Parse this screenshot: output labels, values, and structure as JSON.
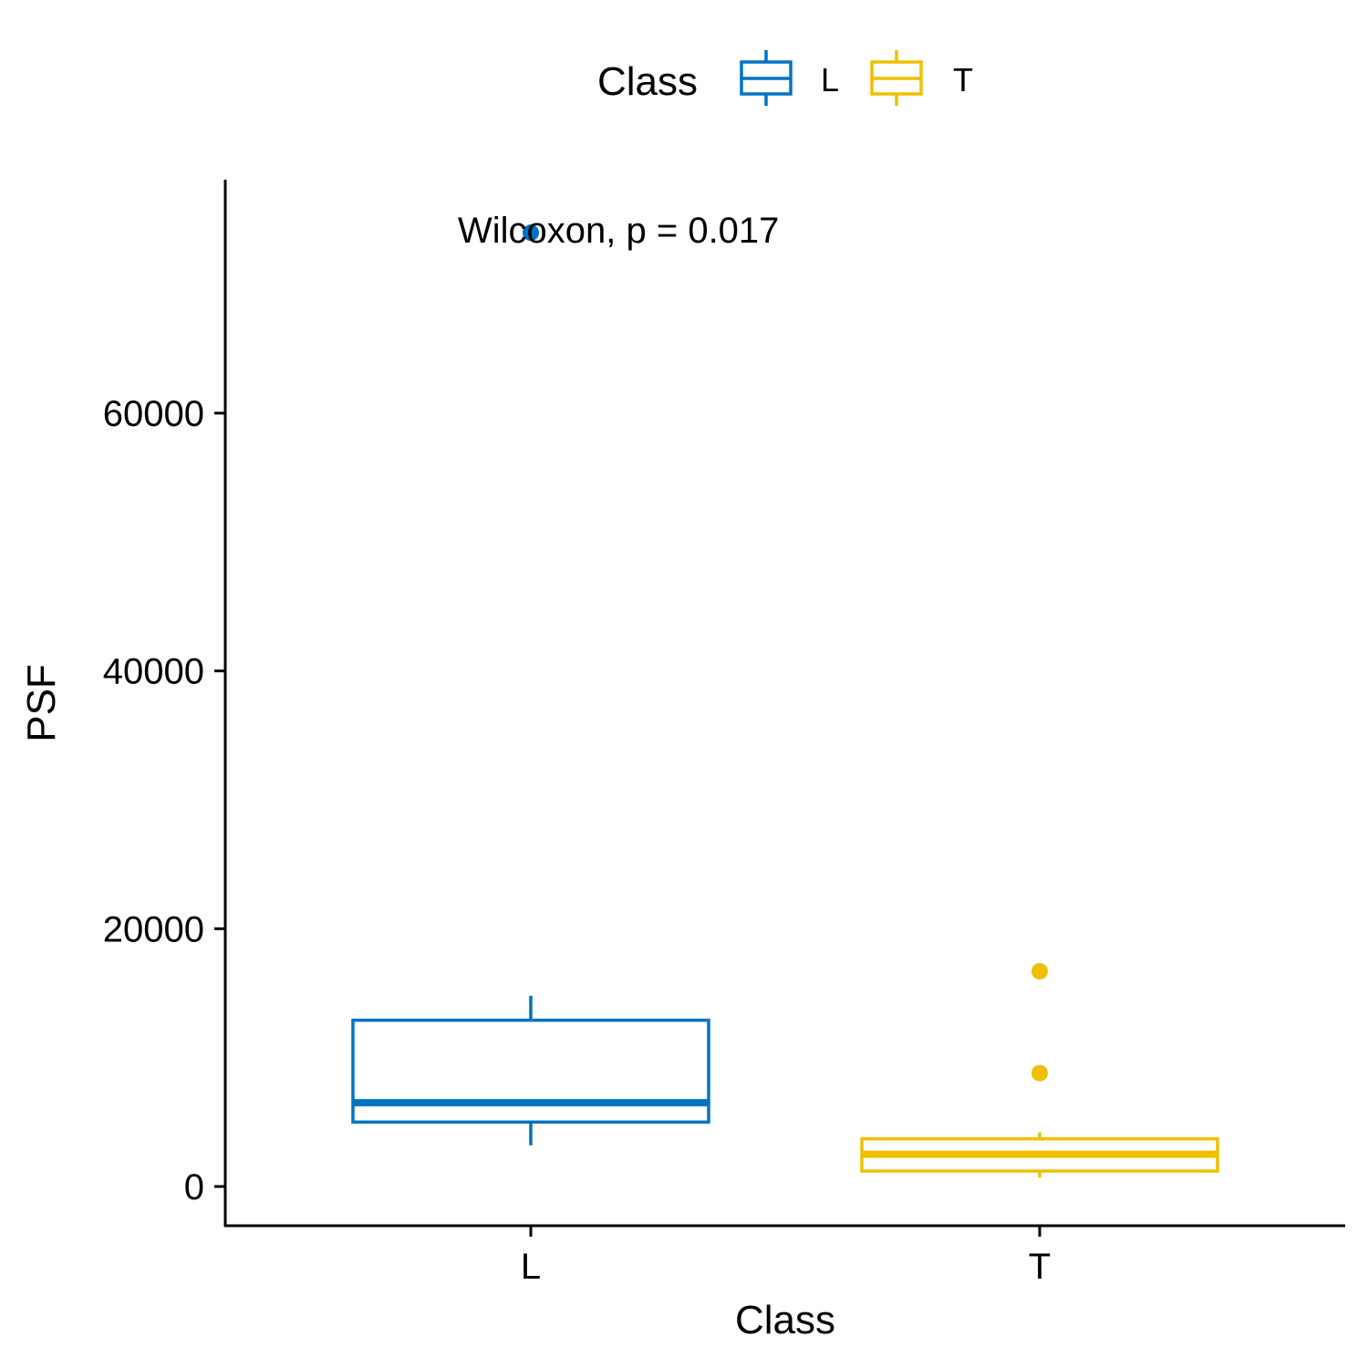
{
  "chart_data": {
    "type": "boxplot",
    "xlabel": "Class",
    "ylabel": "PSF",
    "categories": [
      "L",
      "T"
    ],
    "ylim": [
      -3000,
      77000
    ],
    "yticks": [
      0,
      20000,
      40000,
      60000
    ],
    "ytick_labels": [
      "0",
      "20000",
      "40000",
      "60000"
    ],
    "legend": {
      "title": "Class",
      "position": "top",
      "entries": [
        "L",
        "T"
      ]
    },
    "series": [
      {
        "name": "L",
        "color": "#0073C2",
        "whisker_low": 3200,
        "q1": 5000,
        "median": 6500,
        "q3": 12900,
        "whisker_high": 14800,
        "outliers": [
          74000
        ]
      },
      {
        "name": "T",
        "color": "#EFC000",
        "whisker_low": 700,
        "q1": 1200,
        "median": 2500,
        "q3": 3700,
        "whisker_high": 4200,
        "outliers": [
          8800,
          16700
        ]
      }
    ],
    "annotation": "Wilcoxon, p = 0.017",
    "grid": false
  }
}
